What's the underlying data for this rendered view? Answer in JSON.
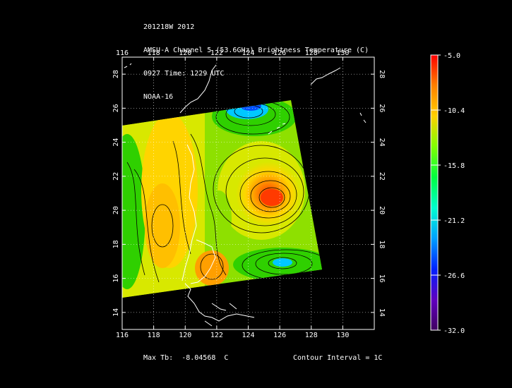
{
  "header": {
    "line1": "201218W 2012",
    "line2": "AMSU-A Channel 5 (53.6GHz) Brightness Temperature (C)",
    "line3": "0927 Time: 1229 UTC",
    "line4": "NOAA-16"
  },
  "map": {
    "lon_ticks": [
      "116",
      "118",
      "120",
      "122",
      "124",
      "126",
      "128",
      "130"
    ],
    "lat_ticks": [
      "14",
      "16",
      "18",
      "20",
      "22",
      "24",
      "26",
      "28"
    ],
    "lon_range": [
      116,
      132
    ],
    "lat_range": [
      13,
      29
    ],
    "swath_colors": [
      "#2fd000",
      "#8ee000",
      "#d8e800",
      "#ffcc00",
      "#ff9f00",
      "#ff6a00",
      "#ff2a00",
      "#00c8ff",
      "#0050ff"
    ],
    "coastline_color": "#ffffff",
    "contour_color": "#000000",
    "grid_color": "#ffffff"
  },
  "colorbar": {
    "labels": [
      "-5.0",
      "-10.4",
      "-15.8",
      "-21.2",
      "-26.6",
      "-32.0"
    ],
    "colors": [
      "#ff0000",
      "#ff8000",
      "#ffd000",
      "#80ff00",
      "#00ff40",
      "#00ffd0",
      "#00a0ff",
      "#0020ff",
      "#6000c0",
      "#400060"
    ]
  },
  "footer": {
    "max_label": "Max Tb:",
    "max_value": "-8.04568",
    "max_unit": "C",
    "contour": "Contour Interval = 1C"
  }
}
